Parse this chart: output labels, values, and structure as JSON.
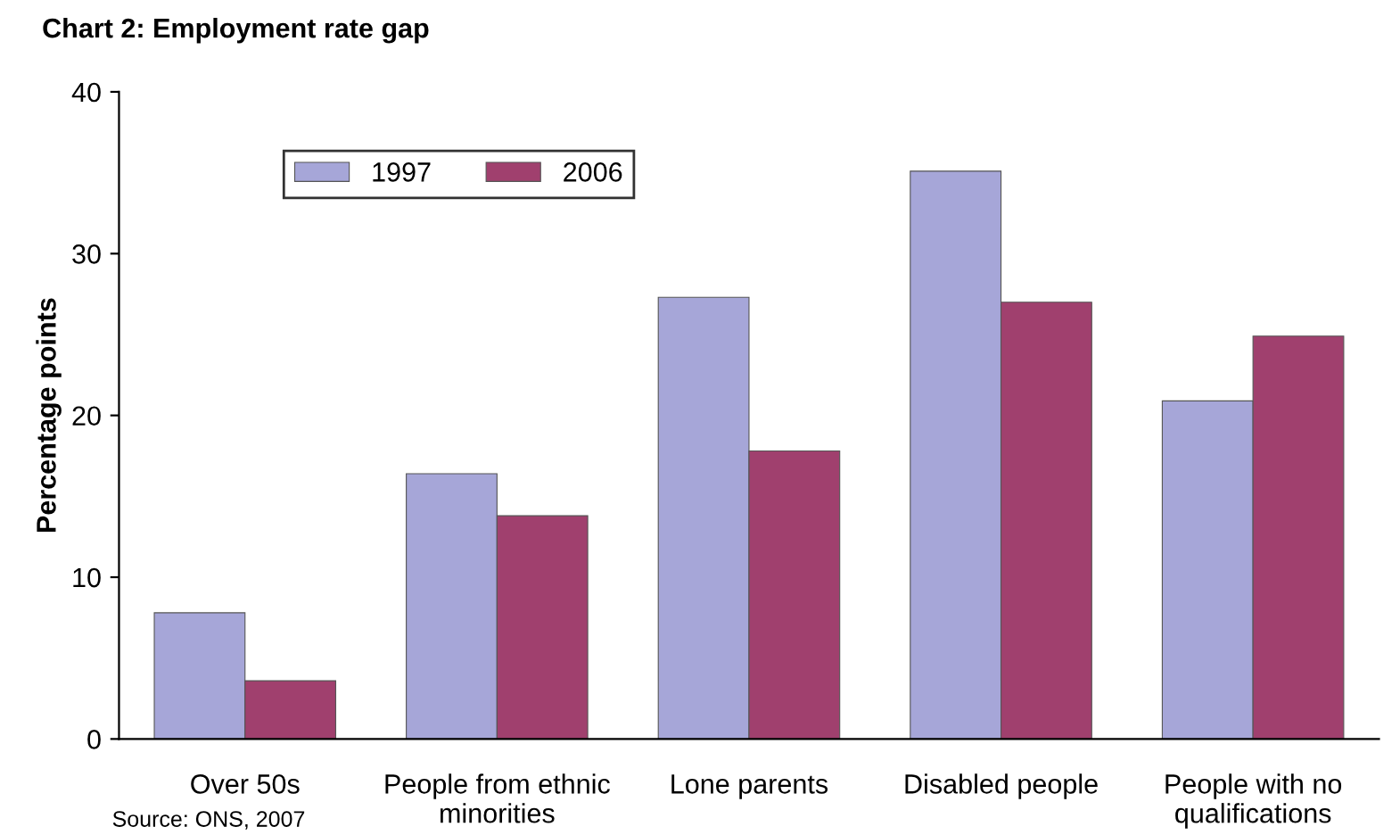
{
  "chart_data": {
    "type": "bar",
    "title": "Chart 2: Employment rate gap",
    "ylabel": "Percentage points",
    "categories": [
      "Over 50s",
      "People from ethnic\nminorities",
      "Lone parents",
      "Disabled people",
      "People with no\nqualifications"
    ],
    "series": [
      {
        "name": "1997",
        "color": "#a6a6d8",
        "values": [
          7.8,
          16.4,
          27.3,
          35.1,
          20.9
        ]
      },
      {
        "name": "2006",
        "color": "#a0406e",
        "values": [
          3.6,
          13.8,
          17.8,
          27.0,
          24.9
        ]
      }
    ],
    "ylim": [
      0,
      40
    ],
    "yticks": [
      0,
      10,
      20,
      30,
      40
    ],
    "grid": false,
    "legend": "top left",
    "annotations": [
      "Source: ONS, 2007"
    ]
  }
}
